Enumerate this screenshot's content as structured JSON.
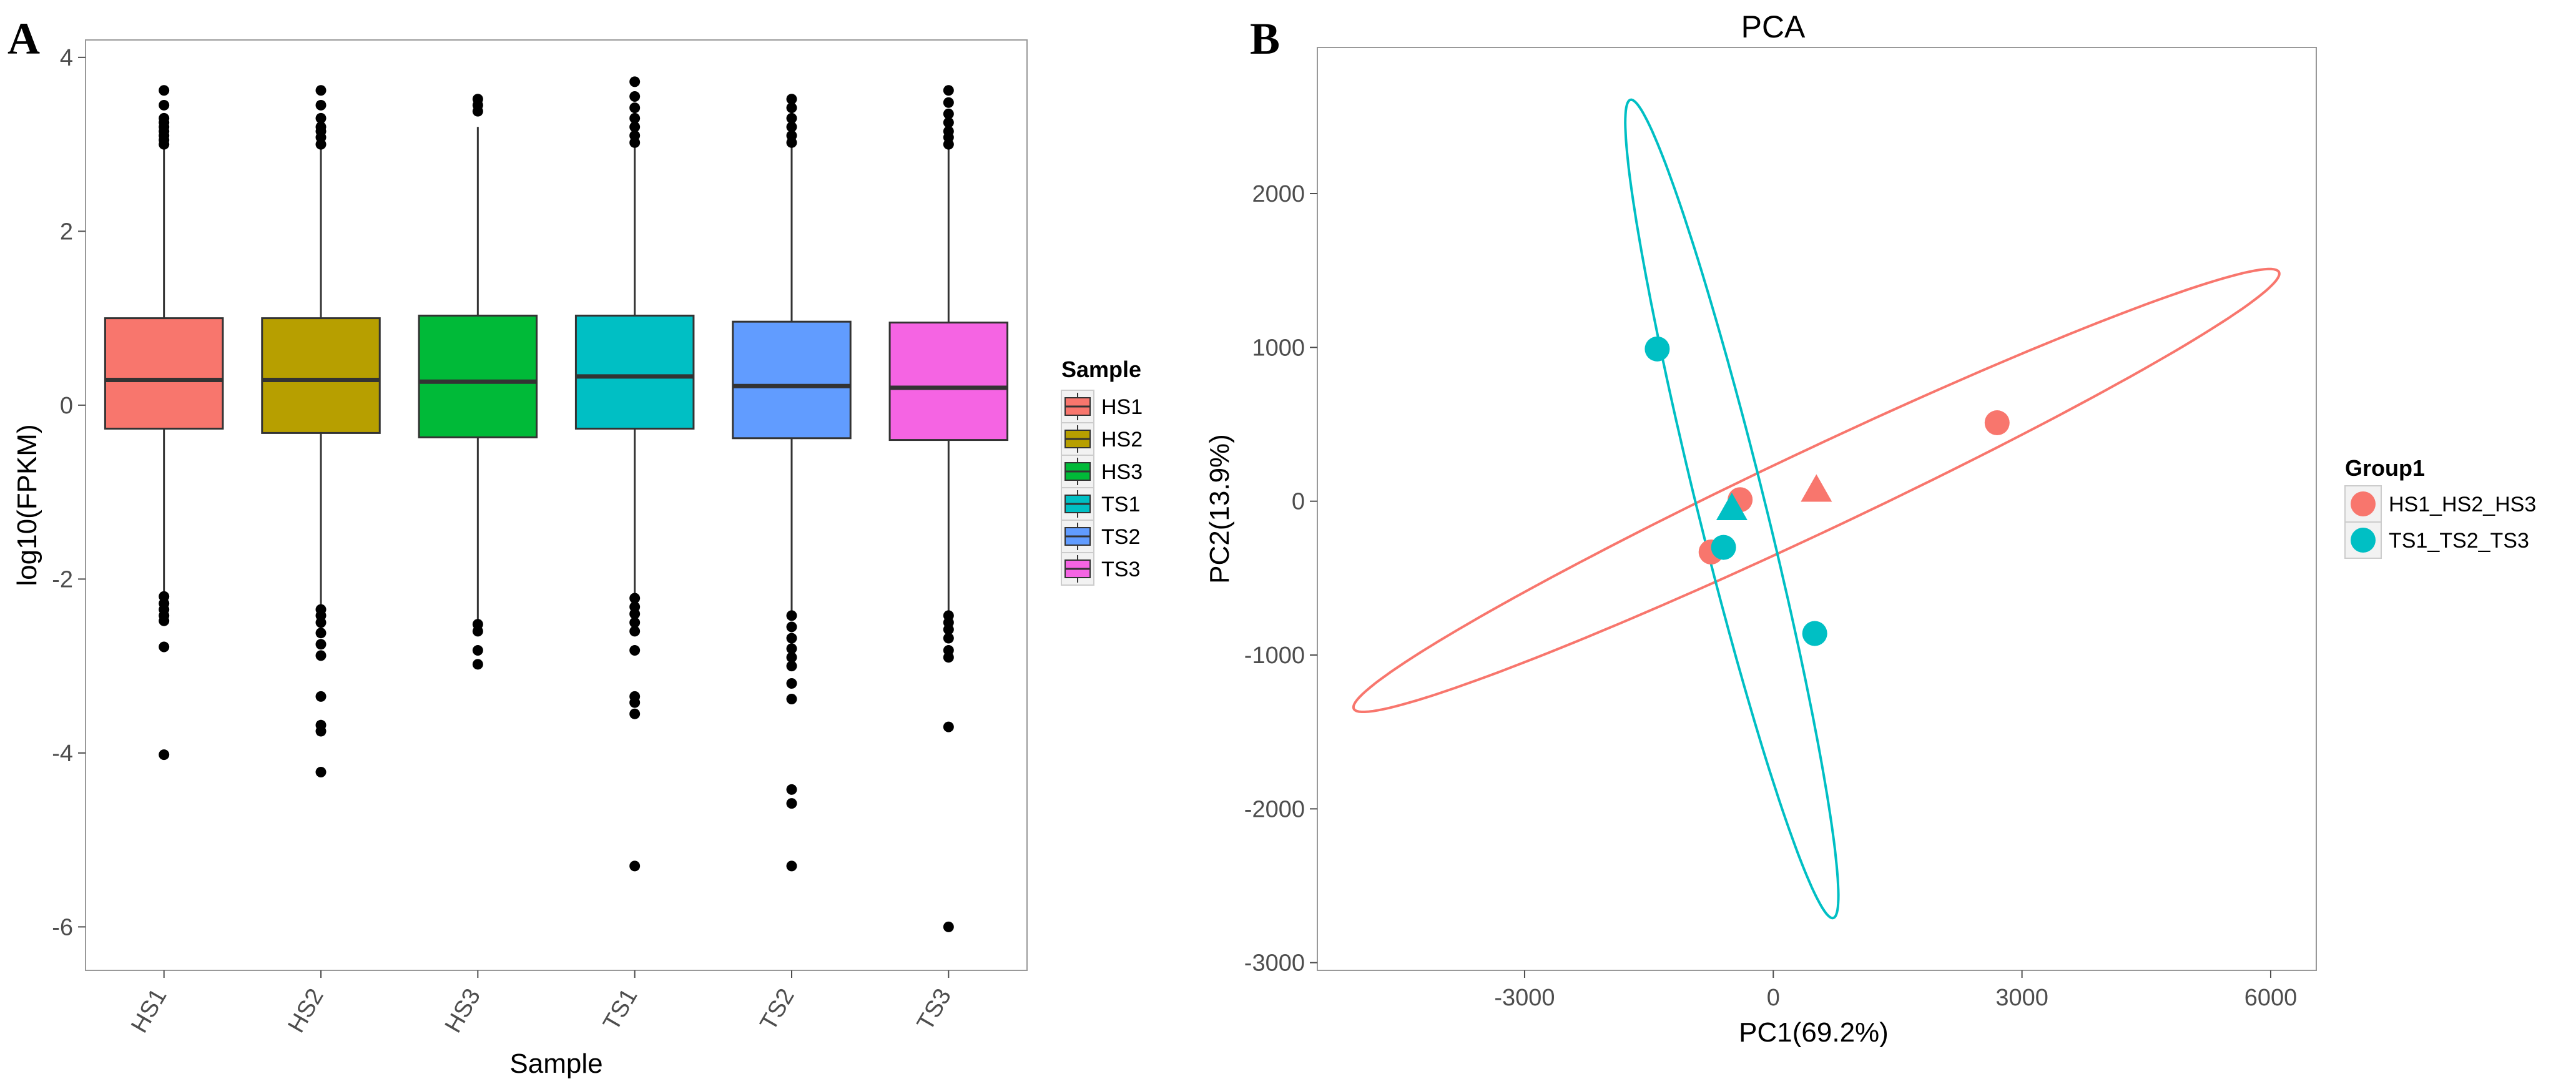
{
  "panels": {
    "a_label": "A",
    "b_label": "B"
  },
  "chart_data": [
    {
      "type": "box",
      "title": "",
      "xlabel": "Sample",
      "ylabel": "log10(FPKM)",
      "ylim": [
        -6.5,
        4.2
      ],
      "yticks": [
        -6,
        -4,
        -2,
        0,
        2,
        4
      ],
      "grid": false,
      "legend": {
        "title": "Sample",
        "position": "right"
      },
      "categories": [
        "HS1",
        "HS2",
        "HS3",
        "TS1",
        "TS2",
        "TS3"
      ],
      "colors": [
        "#F8766D",
        "#B79F00",
        "#00BA38",
        "#00BFC4",
        "#619CFF",
        "#F564E3"
      ],
      "boxes": [
        {
          "q1": -0.27,
          "median": 0.29,
          "q3": 1.0,
          "whisker_low": -2.18,
          "whisker_high": 2.98,
          "outliers": [
            3.0,
            3.05,
            3.1,
            3.15,
            3.2,
            3.25,
            3.3,
            3.45,
            3.62,
            -2.2,
            -2.28,
            -2.35,
            -2.42,
            -2.48,
            -2.78,
            -4.02
          ]
        },
        {
          "q1": -0.32,
          "median": 0.29,
          "q3": 1.0,
          "whisker_low": -2.3,
          "whisker_high": 2.98,
          "outliers": [
            3.0,
            3.08,
            3.15,
            3.2,
            3.3,
            3.45,
            3.62,
            -2.35,
            -2.42,
            -2.5,
            -2.62,
            -2.75,
            -2.88,
            -3.35,
            -3.68,
            -3.75,
            -4.22
          ]
        },
        {
          "q1": -0.37,
          "median": 0.27,
          "q3": 1.03,
          "whisker_low": -2.48,
          "whisker_high": 3.2,
          "outliers": [
            3.38,
            3.45,
            3.52,
            -2.52,
            -2.6,
            -2.82,
            -2.98
          ]
        },
        {
          "q1": -0.27,
          "median": 0.33,
          "q3": 1.03,
          "whisker_low": -2.18,
          "whisker_high": 2.98,
          "outliers": [
            3.02,
            3.1,
            3.2,
            3.3,
            3.42,
            3.55,
            3.72,
            -2.22,
            -2.32,
            -2.4,
            -2.5,
            -2.6,
            -2.82,
            -3.35,
            -3.42,
            -3.55,
            -5.3
          ]
        },
        {
          "q1": -0.38,
          "median": 0.22,
          "q3": 0.96,
          "whisker_low": -2.38,
          "whisker_high": 2.98,
          "outliers": [
            3.02,
            3.1,
            3.2,
            3.3,
            3.42,
            3.52,
            -2.42,
            -2.55,
            -2.68,
            -2.8,
            -2.9,
            -3.0,
            -3.2,
            -3.38,
            -4.42,
            -4.58,
            -5.3
          ]
        },
        {
          "q1": -0.4,
          "median": 0.2,
          "q3": 0.95,
          "whisker_low": -2.38,
          "whisker_high": 2.95,
          "outliers": [
            3.0,
            3.08,
            3.15,
            3.25,
            3.35,
            3.48,
            3.62,
            -2.42,
            -2.5,
            -2.58,
            -2.68,
            -2.82,
            -2.9,
            -3.7,
            -6.0
          ]
        }
      ]
    },
    {
      "type": "scatter",
      "title": "PCA",
      "xlabel": "PC1(69.2%)",
      "ylabel": "PC2(13.9%)",
      "xlim": [
        -5500,
        6550
      ],
      "ylim": [
        -3050,
        2950
      ],
      "xticks": [
        -3000,
        0,
        3000,
        6000
      ],
      "yticks": [
        -3000,
        -2000,
        -1000,
        0,
        1000,
        2000
      ],
      "grid": false,
      "legend": {
        "title": "Group1",
        "position": "right"
      },
      "series": [
        {
          "name": "HS1_HS2_HS3",
          "color": "#F8766D",
          "points": [
            [
              2700,
              510
            ],
            [
              -400,
              10
            ],
            [
              -750,
              -330
            ]
          ],
          "centroid": [
            520,
            70
          ],
          "ellipse": {
            "center": [
              520,
              70
            ],
            "semi_major": 5760,
            "semi_minor": 285,
            "angle_deg": 14.2
          }
        },
        {
          "name": "TS1_TS2_TS3",
          "color": "#00BFC4",
          "points": [
            [
              -1400,
              990
            ],
            [
              -600,
              -300
            ],
            [
              500,
              -860
            ]
          ],
          "centroid": [
            -500,
            -50
          ],
          "ellipse": {
            "center": [
              -500,
              -50
            ],
            "semi_major": 2930,
            "semi_minor": 380,
            "angle_deg": -65
          }
        }
      ]
    }
  ]
}
